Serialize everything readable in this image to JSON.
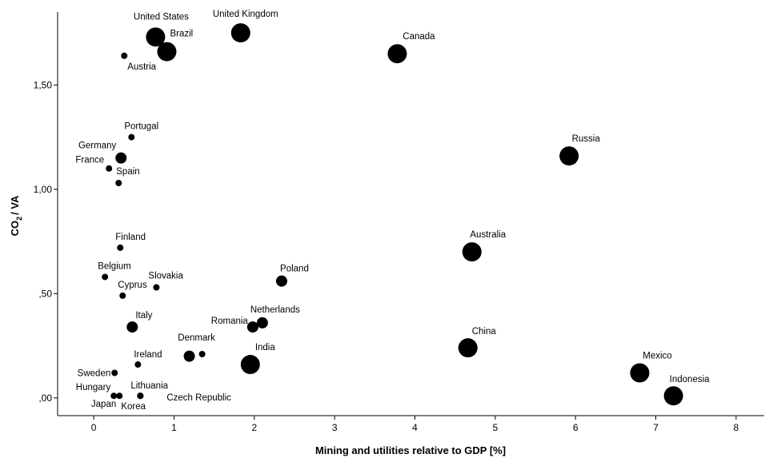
{
  "chart_data": {
    "type": "scatter",
    "title": "",
    "xlabel": "Mining and utilities relative to GDP [%]",
    "ylabel_main": "CO",
    "ylabel_sub": "2",
    "ylabel_rest": "/ VA",
    "xlim": [
      -0.45,
      8.35
    ],
    "ylim": [
      -0.085,
      1.85
    ],
    "x_ticks": [
      0,
      1,
      2,
      3,
      4,
      5,
      6,
      7,
      8
    ],
    "x_tick_labels": [
      "0",
      "1",
      "2",
      "3",
      "4",
      "5",
      "6",
      "7",
      "8"
    ],
    "y_ticks": [
      0,
      0.5,
      1.0,
      1.5
    ],
    "y_tick_labels": [
      ",00",
      ",50",
      "1,00",
      "1,50"
    ],
    "grid": false,
    "legend": "none",
    "marker_color": "#000000",
    "points": [
      {
        "label": "United States",
        "x": 0.77,
        "y": 1.73,
        "size": "large"
      },
      {
        "label": "Brazil",
        "x": 0.91,
        "y": 1.66,
        "size": "large"
      },
      {
        "label": "Austria",
        "x": 0.38,
        "y": 1.64,
        "size": "small"
      },
      {
        "label": "United Kingdom",
        "x": 1.83,
        "y": 1.75,
        "size": "large"
      },
      {
        "label": "Canada",
        "x": 3.78,
        "y": 1.65,
        "size": "large"
      },
      {
        "label": "Portugal",
        "x": 0.47,
        "y": 1.25,
        "size": "small"
      },
      {
        "label": "Germany",
        "x": 0.34,
        "y": 1.15,
        "size": "medium"
      },
      {
        "label": "France",
        "x": 0.19,
        "y": 1.1,
        "size": "small"
      },
      {
        "label": "Spain",
        "x": 0.31,
        "y": 1.03,
        "size": "small"
      },
      {
        "label": "Russia",
        "x": 5.92,
        "y": 1.16,
        "size": "large"
      },
      {
        "label": "Finland",
        "x": 0.33,
        "y": 0.72,
        "size": "small"
      },
      {
        "label": "Australia",
        "x": 4.71,
        "y": 0.7,
        "size": "large"
      },
      {
        "label": "Belgium",
        "x": 0.14,
        "y": 0.58,
        "size": "small"
      },
      {
        "label": "Slovakia",
        "x": 0.78,
        "y": 0.53,
        "size": "small"
      },
      {
        "label": "Cyprus",
        "x": 0.36,
        "y": 0.49,
        "size": "small"
      },
      {
        "label": "Poland",
        "x": 2.34,
        "y": 0.56,
        "size": "medium"
      },
      {
        "label": "Italy",
        "x": 0.48,
        "y": 0.34,
        "size": "medium"
      },
      {
        "label": "Netherlands",
        "x": 2.1,
        "y": 0.36,
        "size": "medium"
      },
      {
        "label": "Romania",
        "x": 1.98,
        "y": 0.34,
        "size": "medium"
      },
      {
        "label": "Denmark",
        "x": 1.35,
        "y": 0.21,
        "size": "small"
      },
      {
        "label": "",
        "x": 1.19,
        "y": 0.2,
        "size": "medium"
      },
      {
        "label": "India",
        "x": 1.95,
        "y": 0.16,
        "size": "large"
      },
      {
        "label": "China",
        "x": 4.66,
        "y": 0.24,
        "size": "large"
      },
      {
        "label": "Ireland",
        "x": 0.55,
        "y": 0.16,
        "size": "small"
      },
      {
        "label": "Sweden",
        "x": 0.26,
        "y": 0.12,
        "size": "small"
      },
      {
        "label": "Mexico",
        "x": 6.8,
        "y": 0.12,
        "size": "large"
      },
      {
        "label": "Hungary",
        "x": 0.25,
        "y": 0.01,
        "size": "small"
      },
      {
        "label": "Japan",
        "x": 0.32,
        "y": 0.01,
        "size": "small"
      },
      {
        "label": "Korea",
        "x": 0.58,
        "y": 0.01,
        "size": "small"
      },
      {
        "label": "Lithuania",
        "x": 0.58,
        "y": 0.01,
        "size": "small"
      },
      {
        "label": "Czech Republic",
        "x": 0.58,
        "y": 0.01,
        "size": "small"
      },
      {
        "label": "Indonesia",
        "x": 7.22,
        "y": 0.01,
        "size": "large"
      }
    ]
  }
}
